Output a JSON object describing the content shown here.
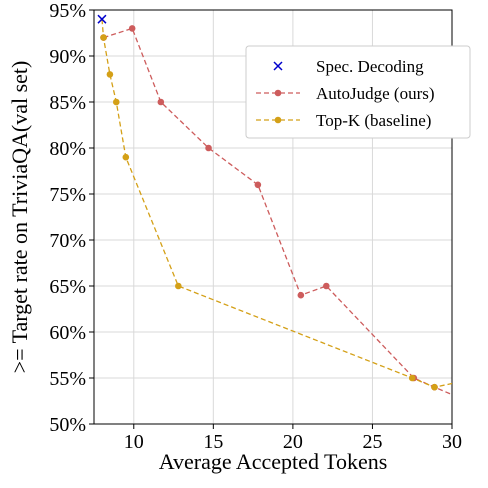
{
  "chart_data": {
    "type": "line",
    "xlabel": "Average Accepted Tokens",
    "ylabel": ">= Target rate on TriviaQA(val set)",
    "xlim": [
      7.5,
      30
    ],
    "ylim": [
      50,
      95
    ],
    "x_ticks": [
      10,
      15,
      20,
      25,
      30
    ],
    "y_ticks": [
      50,
      55,
      60,
      65,
      70,
      75,
      80,
      85,
      90,
      95
    ],
    "y_tick_labels": [
      "50%",
      "55%",
      "60%",
      "65%",
      "70%",
      "75%",
      "80%",
      "85%",
      "90%",
      "95%"
    ],
    "grid": true,
    "legend_position": "top-right",
    "series": [
      {
        "name": "Spec. Decoding",
        "color": "#0000cc",
        "marker": "x",
        "line": "none",
        "points": [
          [
            8.0,
            94.0
          ]
        ]
      },
      {
        "name": "AutoJudge (ours)",
        "color": "#cd5c5c",
        "marker": "circle",
        "line": "dashed",
        "points": [
          [
            8.1,
            92.0
          ],
          [
            9.9,
            93.0
          ],
          [
            11.7,
            85.0
          ],
          [
            14.7,
            80.0
          ],
          [
            17.8,
            76.0
          ],
          [
            20.5,
            64.0
          ],
          [
            22.1,
            65.0
          ],
          [
            27.6,
            55.0
          ],
          [
            28.9,
            54.0
          ],
          [
            30.0,
            53.2
          ]
        ]
      },
      {
        "name": "Top-K (baseline)",
        "color": "#d4a017",
        "marker": "circle",
        "line": "dashed",
        "points": [
          [
            8.0,
            94.0
          ],
          [
            8.1,
            92.0
          ],
          [
            8.5,
            88.0
          ],
          [
            8.9,
            85.0
          ],
          [
            9.5,
            79.0
          ],
          [
            12.8,
            65.0
          ],
          [
            27.5,
            55.0
          ],
          [
            28.9,
            54.0
          ],
          [
            30.0,
            54.4
          ]
        ]
      }
    ]
  }
}
